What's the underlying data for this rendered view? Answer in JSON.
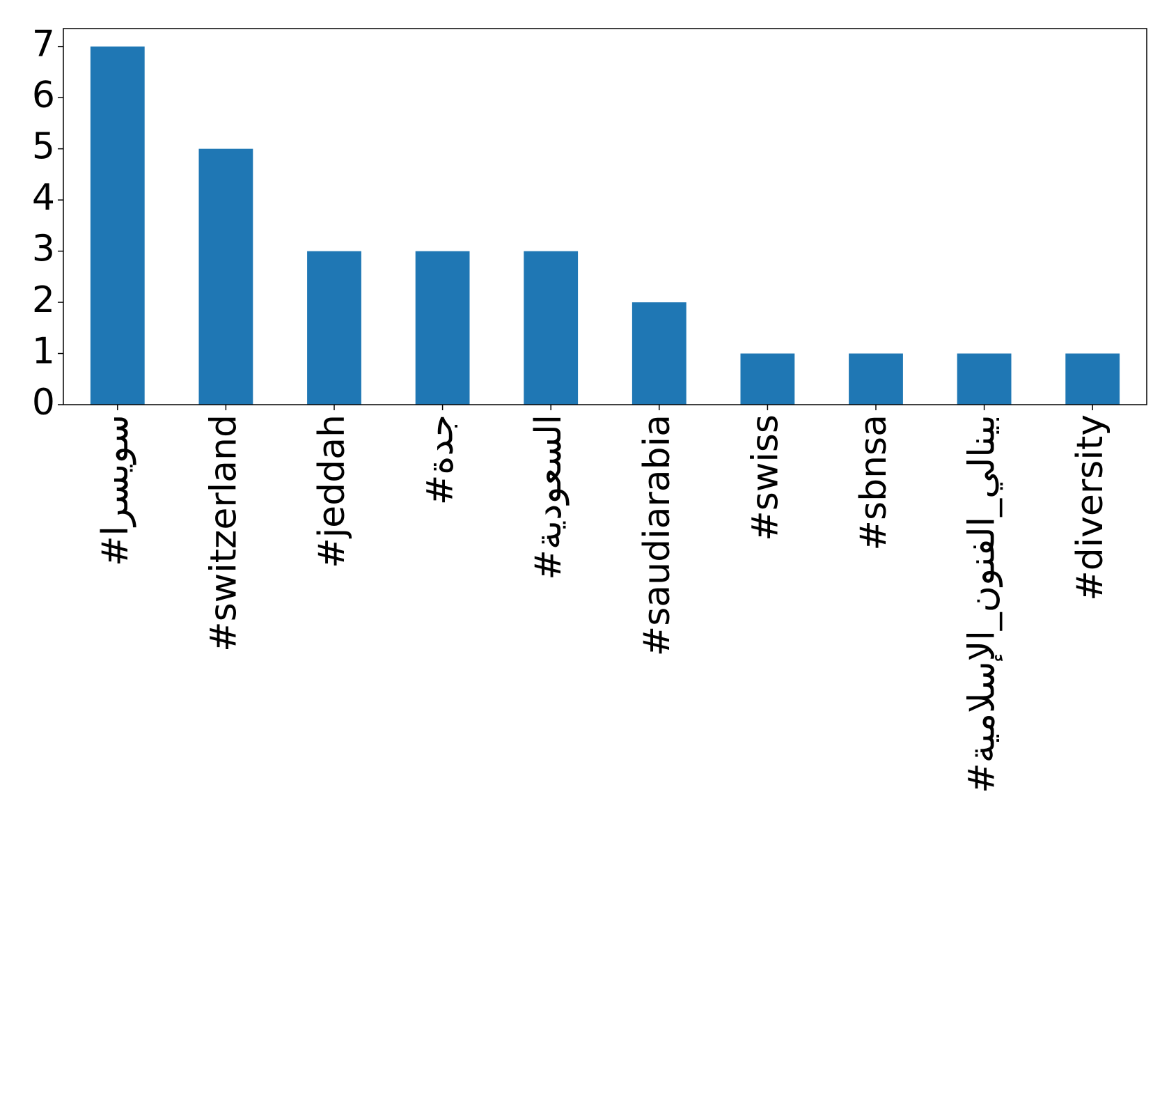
{
  "chart_data": {
    "type": "bar",
    "categories": [
      "#سويسرا",
      "#switzerland",
      "#jeddah",
      "#جدة",
      "#السعودية",
      "#saudiarabia",
      "#swiss",
      "#sbnsa",
      "#بينالي_الفنون_الإسلامية",
      "#diversity"
    ],
    "values": [
      7,
      5,
      3,
      3,
      3,
      2,
      1,
      1,
      1,
      1
    ],
    "color": "#1f77b4",
    "ylim": [
      0,
      7.35
    ],
    "yticks": [
      0,
      1,
      2,
      3,
      4,
      5,
      6,
      7
    ],
    "grid": false
  }
}
